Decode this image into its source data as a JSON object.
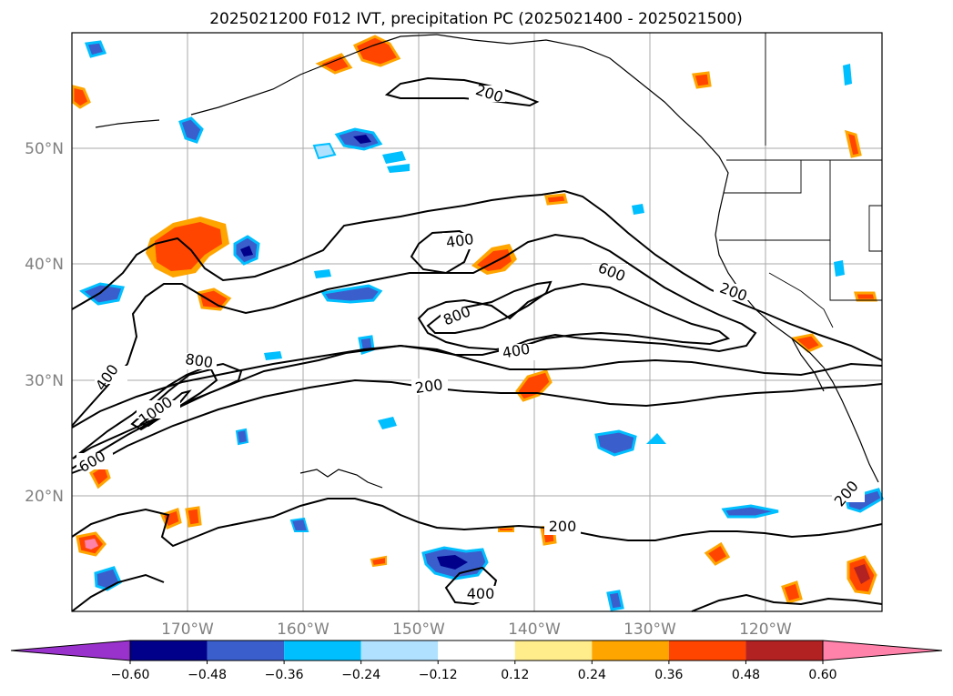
{
  "title": "2025021200 F012 IVT, precipitation PC (2025021400 - 2025021500)",
  "map": {
    "lat_labels": [
      "50°N",
      "40°N",
      "30°N",
      "20°N"
    ],
    "lon_labels": [
      "170°W",
      "160°W",
      "150°W",
      "140°W",
      "130°W",
      "120°W"
    ],
    "grid": true
  },
  "ivt_contour_labels": [
    "200",
    "400",
    "600",
    "200",
    "800",
    "400",
    "200",
    "400",
    "800",
    "1000",
    "600",
    "200",
    "200",
    "400"
  ],
  "colorbar": {
    "ticks": [
      "−0.60",
      "−0.48",
      "−0.36",
      "−0.24",
      "−0.12",
      "0.12",
      "0.24",
      "0.36",
      "0.48",
      "0.60"
    ],
    "colors": [
      "#9932cc",
      "#00008b",
      "#3a5fcd",
      "#00bfff",
      "#b0e2ff",
      "#ffffff",
      "#ffec8b",
      "#ffa500",
      "#ff4500",
      "#b22222",
      "#ff82ab"
    ]
  }
}
